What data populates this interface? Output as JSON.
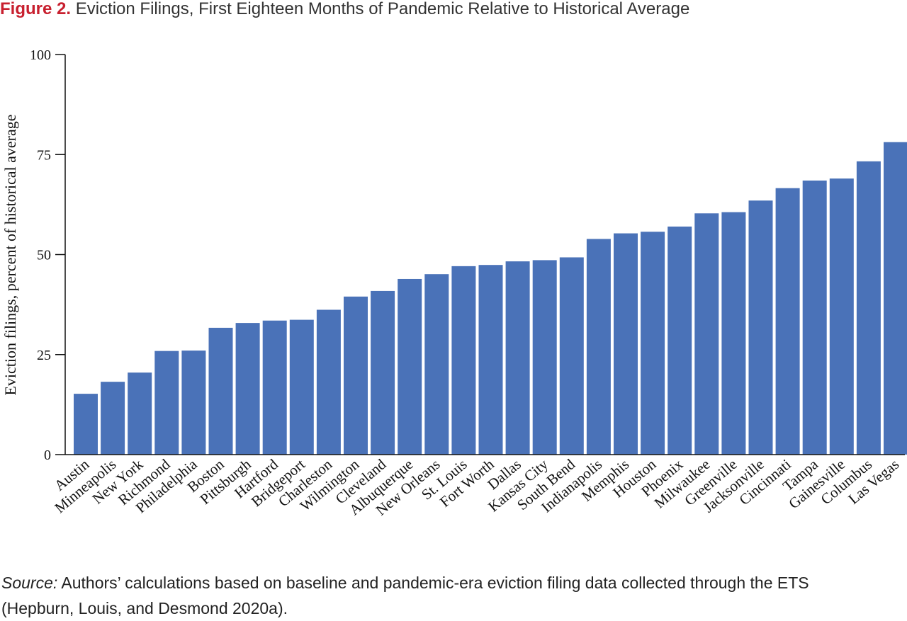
{
  "figure": {
    "label": "Figure 2.",
    "title": "Eviction Filings, First Eighteen Months of Pandemic Relative to Historical Average"
  },
  "chart_data": {
    "type": "bar",
    "ylabel": "Eviction filings, percent of historical average",
    "xlabel": "",
    "ylim": [
      0,
      100
    ],
    "yticks": [
      0,
      25,
      50,
      75,
      100
    ],
    "grid": false,
    "bar_color": "#4a72b8",
    "categories": [
      "Austin",
      "Minneapolis",
      "New York",
      "Richmond",
      "Philadelphia",
      "Boston",
      "Pittsburgh",
      "Hartford",
      "Bridgeport",
      "Charleston",
      "Wilmington",
      "Cleveland",
      "Albuquerque",
      "New Orleans",
      "St. Louis",
      "Fort Worth",
      "Dallas",
      "Kansas City",
      "South Bend",
      "Indianapolis",
      "Memphis",
      "Houston",
      "Phoenix",
      "Milwaukee",
      "Greenville",
      "Jacksonville",
      "Cincinnati",
      "Tampa",
      "Gainesville",
      "Columbus",
      "Las Vegas"
    ],
    "values": [
      15.2,
      18.2,
      20.5,
      25.9,
      26.0,
      31.7,
      32.9,
      33.5,
      33.7,
      36.2,
      39.5,
      40.9,
      43.9,
      45.1,
      47.1,
      47.4,
      48.3,
      48.6,
      49.3,
      53.9,
      55.3,
      55.7,
      57.0,
      60.3,
      60.6,
      63.5,
      66.6,
      68.5,
      69.0,
      73.3,
      78.1
    ]
  },
  "source": {
    "label": "Source:",
    "text": " Authors’ calculations based on baseline and pandemic-era eviction filing data collected through the ETS (Hepburn, Louis, and Desmond 2020a)."
  }
}
